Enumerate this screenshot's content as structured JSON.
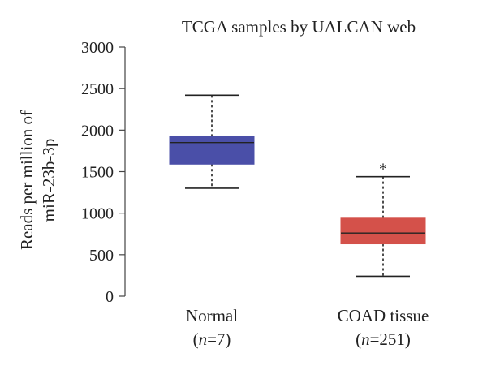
{
  "chart_data": {
    "type": "boxplot",
    "title": "TCGA samples by UALCAN web",
    "ylabel": [
      "Reads per million of",
      "miR-23b-3p"
    ],
    "xlabel": "",
    "ylim": [
      0,
      3000
    ],
    "yticks": [
      0,
      500,
      1000,
      1500,
      2000,
      2500,
      3000
    ],
    "grid": false,
    "groups": [
      {
        "name": "Normal",
        "n_prefix": "(",
        "n_symbol": "n",
        "n_suffix": "=7)",
        "color": "#4a4fa8",
        "min": 1300,
        "q1": 1590,
        "median": 1850,
        "q3": 1930,
        "max": 2420,
        "outliers": []
      },
      {
        "name": "COAD tissue",
        "n_prefix": "(",
        "n_symbol": "n",
        "n_suffix": "=251)",
        "color": "#d4514a",
        "min": 240,
        "q1": 630,
        "median": 760,
        "q3": 940,
        "max": 1440,
        "outliers": [
          1560
        ]
      }
    ]
  }
}
